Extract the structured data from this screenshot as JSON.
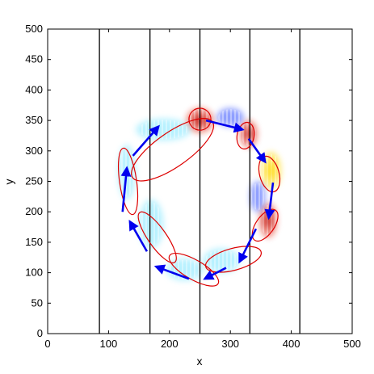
{
  "chart_data": {
    "type": "scatter",
    "xlabel": "x",
    "ylabel": "y",
    "xlim": [
      0,
      500
    ],
    "ylim": [
      0,
      500
    ],
    "x_ticks": [
      0,
      100,
      200,
      300,
      400,
      500
    ],
    "y_ticks": [
      0,
      50,
      100,
      150,
      200,
      250,
      300,
      350,
      400,
      450,
      500
    ],
    "grid": false,
    "vertical_lines_x": [
      85,
      168,
      250,
      332,
      414
    ],
    "colors": {
      "vertical_line": "#000000",
      "ellipse": "#dd0000",
      "arrow": "#0000ee",
      "field_red": "#e02010",
      "field_yellow": "#ffd800",
      "field_cyan": "#7fe6ff",
      "field_blue": "#3050ff"
    },
    "ellipses": [
      {
        "cx": 250,
        "cy": 352,
        "rx": 18,
        "ry": 18,
        "angle_deg": 0
      },
      {
        "cx": 325,
        "cy": 325,
        "rx": 14,
        "ry": 22,
        "angle_deg": -10
      },
      {
        "cx": 364,
        "cy": 262,
        "rx": 16,
        "ry": 30,
        "angle_deg": 15
      },
      {
        "cx": 357,
        "cy": 178,
        "rx": 15,
        "ry": 30,
        "angle_deg": -35
      },
      {
        "cx": 305,
        "cy": 122,
        "rx": 47,
        "ry": 18,
        "angle_deg": 15
      },
      {
        "cx": 240,
        "cy": 105,
        "rx": 46,
        "ry": 16,
        "angle_deg": -30
      },
      {
        "cx": 180,
        "cy": 158,
        "rx": 15,
        "ry": 50,
        "angle_deg": 35
      },
      {
        "cx": 132,
        "cy": 250,
        "rx": 14,
        "ry": 55,
        "angle_deg": 8
      },
      {
        "cx": 205,
        "cy": 302,
        "rx": 80,
        "ry": 28,
        "angle_deg": 35
      }
    ],
    "arrows": [
      {
        "from": [
          260,
          350
        ],
        "to": [
          320,
          335
        ]
      },
      {
        "from": [
          330,
          320
        ],
        "to": [
          357,
          282
        ]
      },
      {
        "from": [
          370,
          248
        ],
        "to": [
          363,
          190
        ]
      },
      {
        "from": [
          342,
          172
        ],
        "to": [
          315,
          118
        ]
      },
      {
        "from": [
          293,
          108
        ],
        "to": [
          258,
          90
        ]
      },
      {
        "from": [
          232,
          90
        ],
        "to": [
          178,
          110
        ]
      },
      {
        "from": [
          163,
          135
        ],
        "to": [
          135,
          184
        ]
      },
      {
        "from": [
          123,
          200
        ],
        "to": [
          130,
          272
        ]
      },
      {
        "from": [
          140,
          292
        ],
        "to": [
          182,
          340
        ]
      }
    ],
    "field_blobs": [
      {
        "cx": 250,
        "cy": 350,
        "rx": 22,
        "ry": 20,
        "color": "red"
      },
      {
        "cx": 330,
        "cy": 328,
        "rx": 14,
        "ry": 22,
        "color": "red"
      },
      {
        "cx": 367,
        "cy": 268,
        "rx": 16,
        "ry": 30,
        "color": "yellow"
      },
      {
        "cx": 362,
        "cy": 186,
        "rx": 14,
        "ry": 28,
        "color": "red"
      },
      {
        "cx": 285,
        "cy": 120,
        "rx": 30,
        "ry": 20,
        "color": "cyan"
      },
      {
        "cx": 225,
        "cy": 105,
        "rx": 30,
        "ry": 18,
        "color": "cyan"
      },
      {
        "cx": 170,
        "cy": 180,
        "rx": 20,
        "ry": 40,
        "color": "cyan"
      },
      {
        "cx": 130,
        "cy": 265,
        "rx": 14,
        "ry": 45,
        "color": "cyan"
      },
      {
        "cx": 190,
        "cy": 335,
        "rx": 45,
        "ry": 18,
        "color": "cyan"
      },
      {
        "cx": 300,
        "cy": 355,
        "rx": 22,
        "ry": 15,
        "color": "blue"
      },
      {
        "cx": 345,
        "cy": 225,
        "rx": 12,
        "ry": 25,
        "color": "blue"
      }
    ]
  }
}
